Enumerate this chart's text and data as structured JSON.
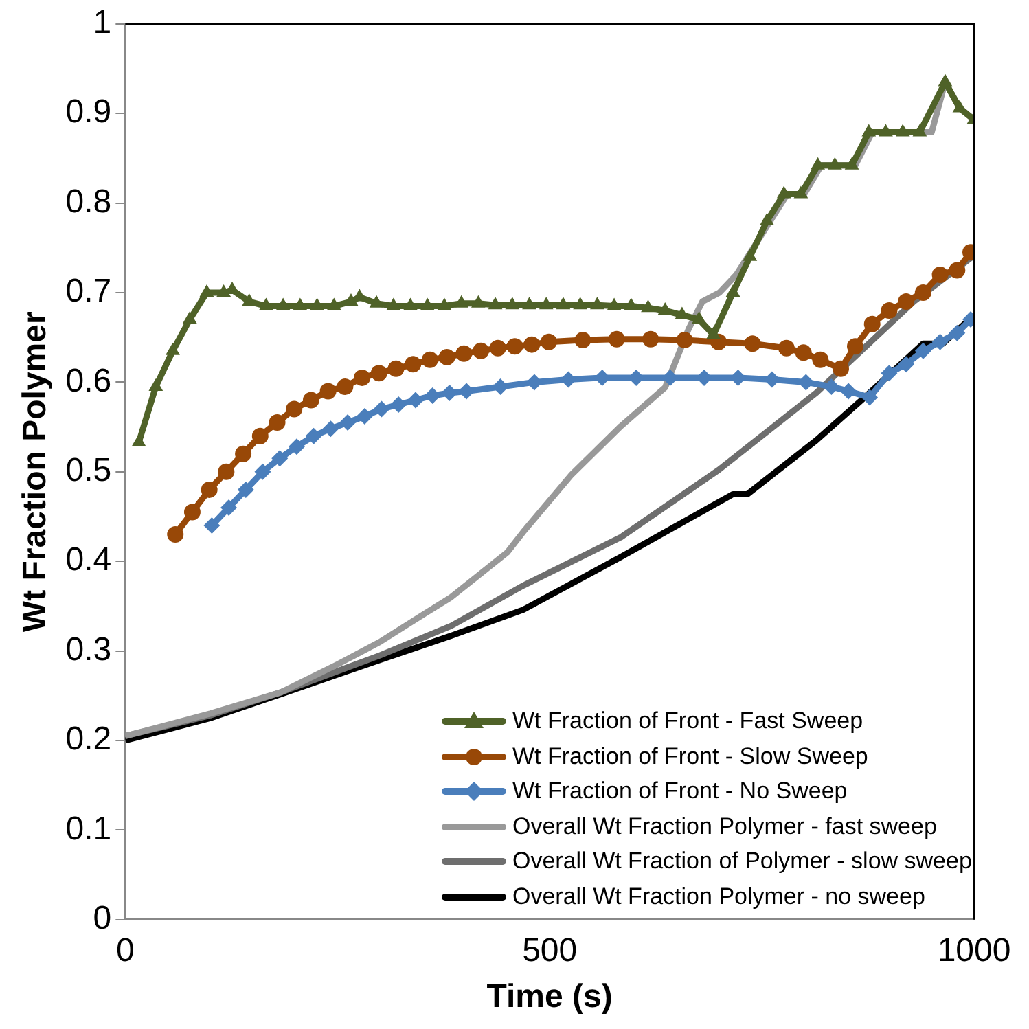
{
  "chart_data": {
    "type": "line",
    "xlabel": "Time (s)",
    "ylabel": "Wt Fraction Polymer",
    "xlim": [
      0,
      1000
    ],
    "xticks": [
      0,
      500,
      1000
    ],
    "ylim": [
      0,
      1
    ],
    "yticks": [
      0,
      0.1,
      0.2,
      0.3,
      0.4,
      0.5,
      0.6,
      0.7,
      0.8,
      0.9,
      1
    ],
    "grid": false,
    "legend": "bottom right",
    "line_style": "solid",
    "series": [
      {
        "name": "Wt Fraction of Front - Fast Sweep",
        "color": "#4f6228",
        "marker": "triangle",
        "x": [
          16,
          36,
          56,
          76,
          96,
          116,
          126,
          146,
          166,
          186,
          206,
          226,
          246,
          266,
          276,
          296,
          316,
          336,
          356,
          376,
          396,
          416,
          436,
          456,
          476,
          496,
          516,
          536,
          556,
          576,
          596,
          616,
          636,
          656,
          676,
          693,
          716,
          736,
          756,
          776,
          796,
          816,
          836,
          856,
          876,
          896,
          916,
          936,
          966,
          983,
          1000
        ],
        "values": [
          0.533,
          0.595,
          0.635,
          0.67,
          0.7,
          0.7,
          0.703,
          0.69,
          0.685,
          0.685,
          0.685,
          0.685,
          0.685,
          0.69,
          0.695,
          0.688,
          0.685,
          0.685,
          0.685,
          0.685,
          0.688,
          0.688,
          0.686,
          0.686,
          0.686,
          0.686,
          0.686,
          0.686,
          0.686,
          0.685,
          0.685,
          0.683,
          0.68,
          0.675,
          0.67,
          0.653,
          0.7,
          0.74,
          0.78,
          0.81,
          0.81,
          0.842,
          0.842,
          0.842,
          0.879,
          0.879,
          0.879,
          0.879,
          0.935,
          0.906,
          0.893
        ]
      },
      {
        "name": "Wt Fraction of Front - Slow Sweep",
        "color": "#984807",
        "marker": "circle",
        "x": [
          59,
          79,
          99,
          119,
          139,
          159,
          179,
          199,
          219,
          239,
          259,
          279,
          299,
          319,
          339,
          359,
          379,
          399,
          419,
          439,
          459,
          479,
          499,
          539,
          579,
          619,
          659,
          699,
          739,
          779,
          799,
          819,
          843,
          860,
          880,
          900,
          920,
          940,
          960,
          980,
          996
        ],
        "values": [
          0.43,
          0.455,
          0.48,
          0.5,
          0.52,
          0.54,
          0.555,
          0.57,
          0.58,
          0.59,
          0.595,
          0.605,
          0.61,
          0.615,
          0.62,
          0.625,
          0.628,
          0.632,
          0.635,
          0.638,
          0.64,
          0.642,
          0.645,
          0.647,
          0.648,
          0.648,
          0.647,
          0.645,
          0.643,
          0.638,
          0.633,
          0.625,
          0.615,
          0.64,
          0.665,
          0.68,
          0.69,
          0.7,
          0.72,
          0.725,
          0.745
        ]
      },
      {
        "name": "Wt Fraction of Front - No Sweep",
        "color": "#4a7ebb",
        "marker": "diamond",
        "x": [
          102,
          122,
          142,
          162,
          182,
          202,
          222,
          242,
          262,
          282,
          302,
          322,
          342,
          362,
          382,
          402,
          442,
          482,
          522,
          562,
          602,
          642,
          682,
          722,
          762,
          802,
          832,
          852,
          877,
          900,
          920,
          940,
          960,
          980,
          996
        ],
        "values": [
          0.44,
          0.46,
          0.48,
          0.5,
          0.515,
          0.528,
          0.54,
          0.548,
          0.555,
          0.562,
          0.57,
          0.575,
          0.58,
          0.585,
          0.588,
          0.59,
          0.595,
          0.6,
          0.603,
          0.605,
          0.605,
          0.605,
          0.605,
          0.605,
          0.603,
          0.6,
          0.595,
          0.59,
          0.583,
          0.61,
          0.62,
          0.635,
          0.645,
          0.655,
          0.67
        ]
      },
      {
        "name": "Overall Wt Fraction Polymer - fast sweep",
        "color": "#999999",
        "marker": "none",
        "x": [
          0,
          100,
          184,
          250,
          300,
          350,
          384,
          450,
          469,
          526,
          584,
          636,
          664,
          680,
          700,
          720,
          740,
          760,
          780,
          800,
          820,
          860,
          880,
          950,
          966,
          983,
          1000
        ],
        "values": [
          0.205,
          0.23,
          0.254,
          0.285,
          0.31,
          0.34,
          0.36,
          0.41,
          0.433,
          0.497,
          0.551,
          0.594,
          0.66,
          0.69,
          0.7,
          0.72,
          0.75,
          0.78,
          0.81,
          0.81,
          0.842,
          0.842,
          0.879,
          0.879,
          0.935,
          0.906,
          0.893
        ]
      },
      {
        "name": "Overall Wt Fraction of Polymer - slow sweep",
        "color": "#6e6e6e",
        "marker": "none",
        "x": [
          0,
          100,
          184,
          300,
          384,
          469,
          584,
          699,
          814,
          929,
          998
        ],
        "values": [
          0.205,
          0.228,
          0.254,
          0.295,
          0.328,
          0.373,
          0.427,
          0.502,
          0.588,
          0.69,
          0.74
        ]
      },
      {
        "name": "Overall Wt Fraction Polymer - no sweep",
        "color": "#000000",
        "marker": "none",
        "x": [
          0,
          100,
          184,
          300,
          384,
          469,
          584,
          716,
          733,
          814,
          871,
          940,
          963,
          991,
          1000
        ],
        "values": [
          0.2,
          0.225,
          0.252,
          0.29,
          0.317,
          0.346,
          0.405,
          0.475,
          0.475,
          0.535,
          0.583,
          0.643,
          0.643,
          0.667,
          0.67
        ]
      }
    ]
  }
}
